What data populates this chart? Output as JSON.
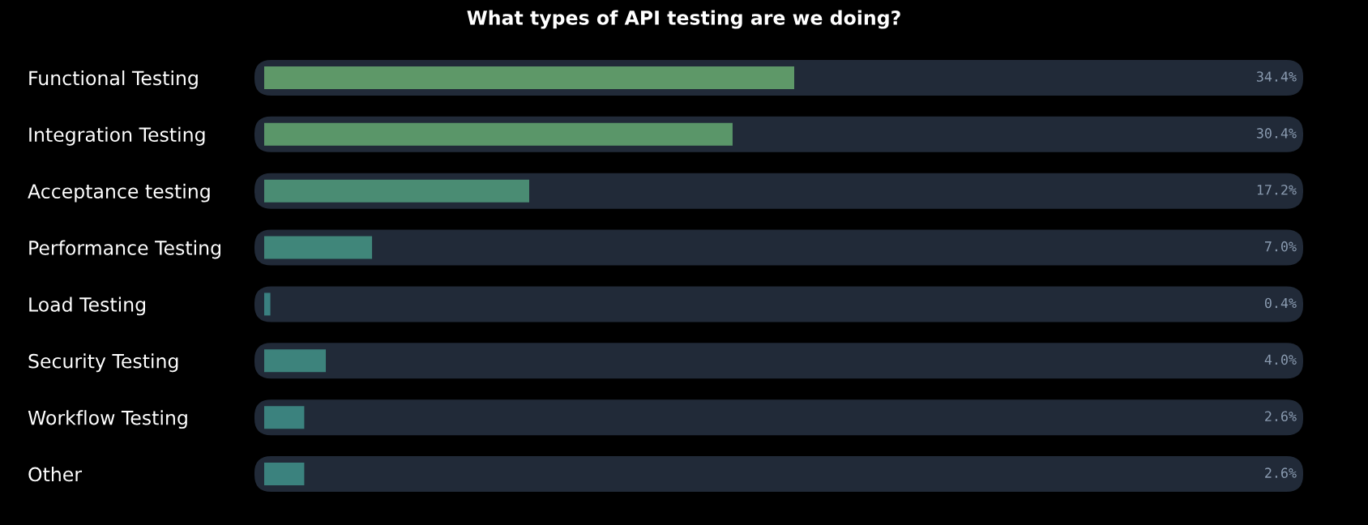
{
  "chart_data": {
    "type": "bar",
    "orientation": "horizontal",
    "title": "What types of API testing are we doing?",
    "categories": [
      "Functional Testing",
      "Integration Testing",
      "Acceptance testing",
      "Performance Testing",
      "Load Testing",
      "Security Testing",
      "Workflow Testing",
      "Other"
    ],
    "values": [
      34.4,
      30.4,
      17.2,
      7.0,
      0.4,
      4.0,
      2.6,
      2.6
    ],
    "value_labels": [
      "34.4%",
      "30.4%",
      "17.2%",
      "7.0%",
      "0.4%",
      "4.0%",
      "2.6%",
      "2.6%"
    ],
    "colors": [
      "#5e9868",
      "#5a9669",
      "#4a8c73",
      "#40867a",
      "#3a8080",
      "#3d837c",
      "#3b827e",
      "#3b827e"
    ],
    "tick_labels": "y",
    "grid": false,
    "legend": false
  }
}
